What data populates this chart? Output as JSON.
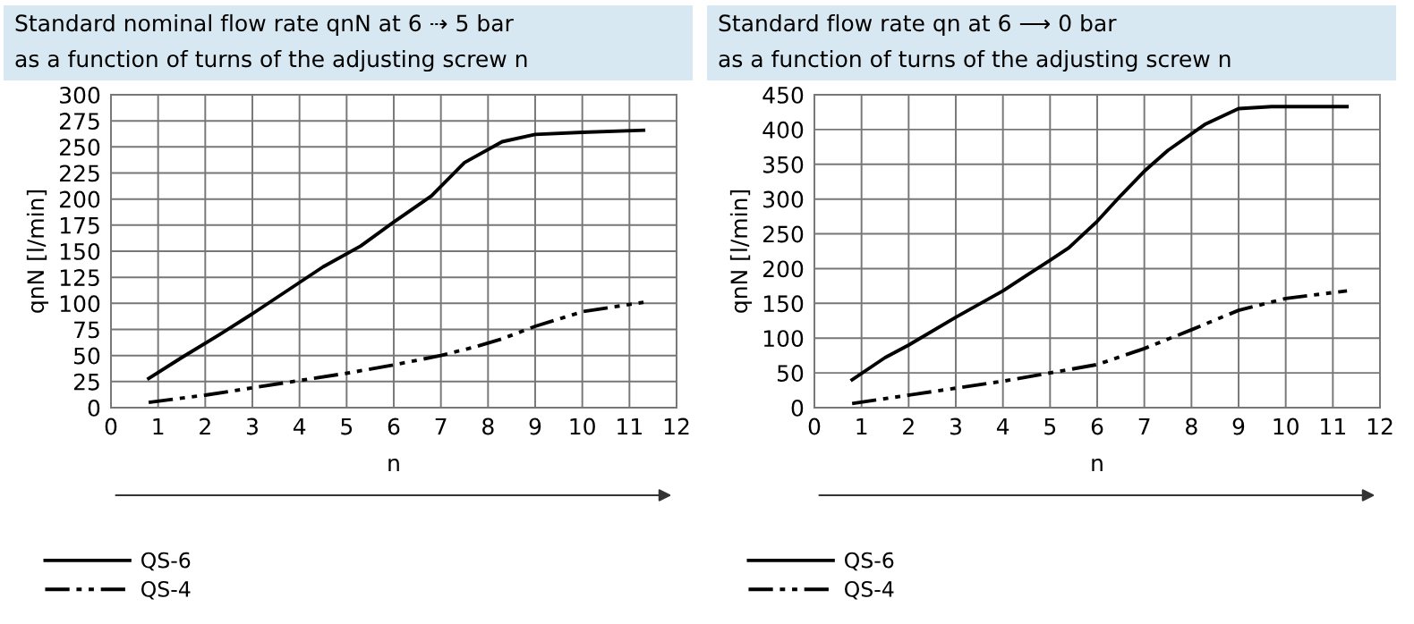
{
  "chart_data": [
    {
      "type": "line",
      "title": "Standard nominal flow rate qnN at 6 ⇢ 5 bar",
      "subtitle": "as a function of turns of the adjusting screw n",
      "xlabel": "n",
      "ylabel": "qnN [l/min]",
      "xlim": [
        0,
        12
      ],
      "xticks": [
        0,
        1,
        2,
        3,
        4,
        5,
        6,
        7,
        8,
        9,
        10,
        11,
        12
      ],
      "ylim": [
        0,
        300
      ],
      "yticks": [
        0,
        25,
        50,
        75,
        100,
        125,
        150,
        175,
        200,
        225,
        250,
        275,
        300
      ],
      "grid": true,
      "legend": "bottom left",
      "series": [
        {
          "name": "QS-6",
          "color": "#000000",
          "line_style": "solid",
          "x": [
            0.8,
            1.5,
            2.3,
            3,
            4,
            4.5,
            5.3,
            6,
            6.8,
            7.5,
            8.3,
            9,
            10,
            11.3
          ],
          "values": [
            28,
            48,
            70,
            90,
            120,
            135,
            155,
            178,
            203,
            235,
            255,
            262,
            264,
            266
          ]
        },
        {
          "name": "QS-4",
          "color": "#000000",
          "line_style": "dashed",
          "x": [
            0.8,
            2,
            3,
            4,
            5,
            6,
            7,
            7.7,
            8.3,
            9,
            10,
            11.3
          ],
          "values": [
            5,
            12,
            19,
            26,
            33,
            41,
            50,
            58,
            66,
            78,
            92,
            101
          ]
        }
      ]
    },
    {
      "type": "line",
      "title": "Standard flow rate qn at 6 ⟶ 0 bar",
      "subtitle": "as a function of turns of the adjusting screw n",
      "xlabel": "n",
      "ylabel": "qnN [l/min]",
      "xlim": [
        0,
        12
      ],
      "xticks": [
        0,
        1,
        2,
        3,
        4,
        5,
        6,
        7,
        8,
        9,
        10,
        11,
        12
      ],
      "ylim": [
        0,
        450
      ],
      "yticks": [
        0,
        50,
        100,
        150,
        200,
        250,
        300,
        350,
        400,
        450
      ],
      "grid": true,
      "legend": "bottom left",
      "series": [
        {
          "name": "QS-6",
          "color": "#000000",
          "line_style": "solid",
          "x": [
            0.8,
            1.5,
            2,
            3,
            4,
            4.5,
            5,
            5.4,
            6,
            6.5,
            7,
            7.5,
            8.3,
            9,
            9.7,
            11.3
          ],
          "values": [
            40,
            72,
            90,
            130,
            168,
            190,
            212,
            230,
            268,
            305,
            340,
            370,
            408,
            430,
            433,
            433
          ]
        },
        {
          "name": "QS-4",
          "color": "#000000",
          "line_style": "dashed",
          "x": [
            0.8,
            2,
            3,
            4,
            5,
            6,
            7,
            8,
            9,
            10,
            11.3
          ],
          "values": [
            6,
            18,
            28,
            38,
            50,
            62,
            85,
            112,
            140,
            157,
            168
          ]
        }
      ]
    }
  ]
}
